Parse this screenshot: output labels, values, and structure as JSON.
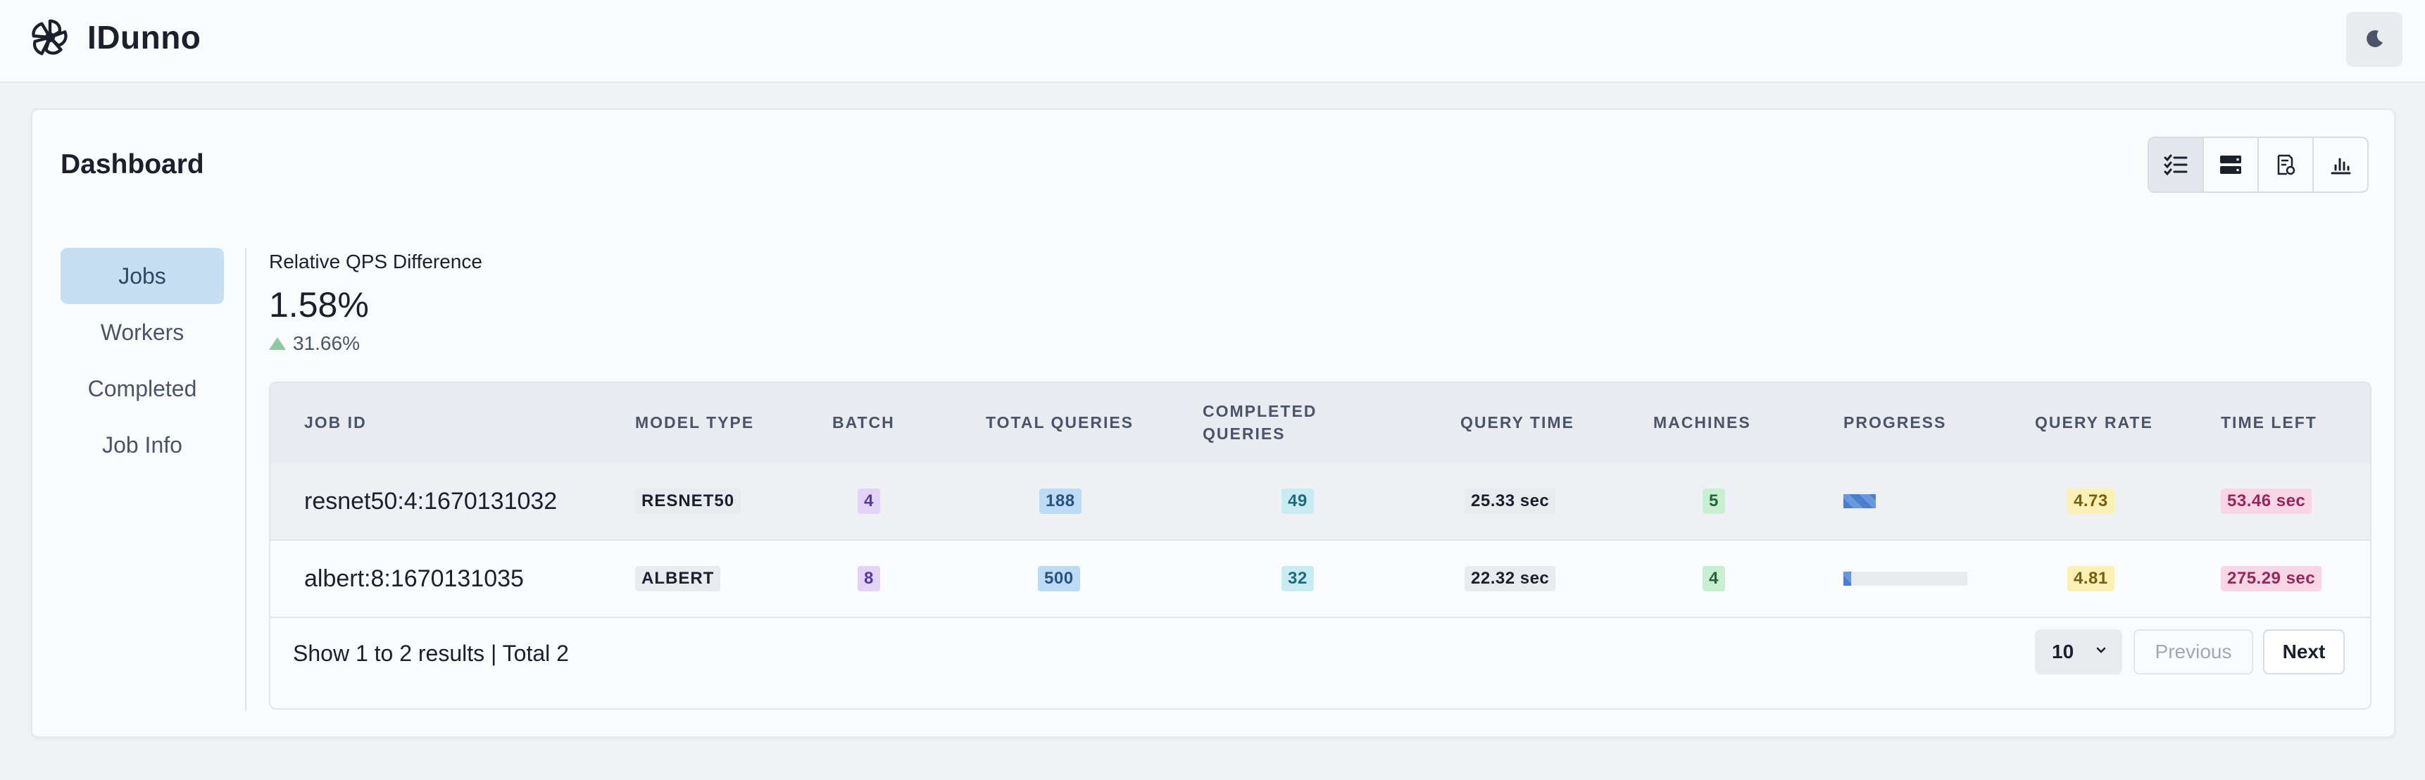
{
  "app": {
    "name": "IDunno"
  },
  "card": {
    "title": "Dashboard"
  },
  "view_switch": [
    {
      "icon": "task-list-icon",
      "active": true
    },
    {
      "icon": "server-icon",
      "active": false
    },
    {
      "icon": "report-icon",
      "active": false
    },
    {
      "icon": "bar-chart-icon",
      "active": false
    }
  ],
  "sidebar": {
    "items": [
      {
        "label": "Jobs",
        "active": true
      },
      {
        "label": "Workers",
        "active": false
      },
      {
        "label": "Completed",
        "active": false
      },
      {
        "label": "Job Info",
        "active": false
      }
    ]
  },
  "stat": {
    "label": "Relative QPS Difference",
    "value": "1.58%",
    "change": "31.66%",
    "change_direction": "increase",
    "change_color": "#8fc9a0"
  },
  "table": {
    "headers": {
      "job_id": "JOB ID",
      "model_type": "MODEL TYPE",
      "batch": "BATCH",
      "total_queries": "TOTAL QUERIES",
      "completed_queries": "COMPLETED QUERIES",
      "query_time": "QUERY TIME",
      "machines": "MACHINES",
      "progress": "PROGRESS",
      "query_rate": "QUERY RATE",
      "time_left": "TIME LEFT"
    },
    "rows": [
      {
        "job_id": "resnet50:4:1670131032",
        "model_type": "RESNET50",
        "batch": "4",
        "total_queries": "188",
        "completed_queries": "49",
        "query_time": "25.33 sec",
        "machines": "5",
        "progress": 0.26,
        "query_rate": "4.73",
        "time_left": "53.46 sec"
      },
      {
        "job_id": "albert:8:1670131035",
        "model_type": "ALBERT",
        "batch": "8",
        "total_queries": "500",
        "completed_queries": "32",
        "query_time": "22.32 sec",
        "machines": "4",
        "progress": 0.064,
        "query_rate": "4.81",
        "time_left": "275.29 sec"
      }
    ],
    "footer": {
      "summary": "Show 1 to 2 results | Total 2",
      "page_size": "10",
      "previous_label": "Previous",
      "next_label": "Next"
    }
  },
  "colors": {
    "accent": "#c6dff3",
    "progress": "#4a7fd0"
  }
}
